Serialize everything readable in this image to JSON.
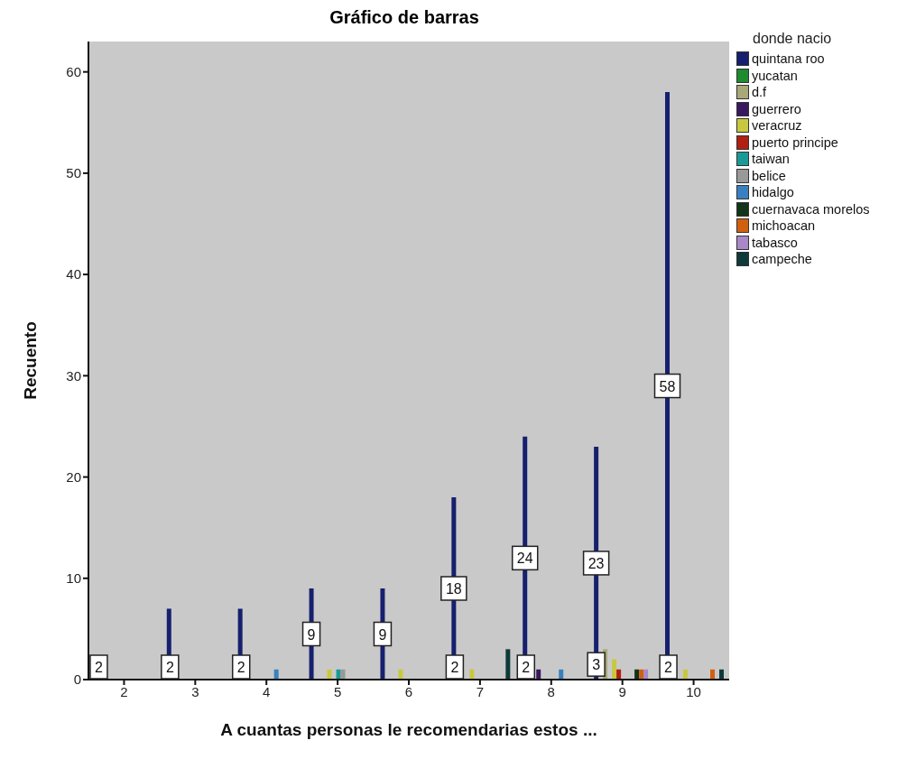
{
  "chart_data": {
    "type": "bar",
    "title": "Gráfico de barras",
    "xlabel": "A cuantas personas le recomendarias estos ...",
    "ylabel": "Recuento",
    "legend_title": "donde nacio",
    "categories": [
      "2",
      "3",
      "4",
      "5",
      "6",
      "7",
      "8",
      "9",
      "10"
    ],
    "ylim": [
      0,
      63
    ],
    "yticks": [
      0,
      10,
      20,
      30,
      40,
      50,
      60
    ],
    "grid": false,
    "legend": "right",
    "series": [
      {
        "name": "quintana roo",
        "color": "#16206e",
        "values": [
          0,
          7,
          7,
          9,
          9,
          18,
          24,
          23,
          58
        ],
        "value_labels": [
          null,
          null,
          null,
          "9",
          "9",
          "18",
          "24",
          "23",
          "58"
        ]
      },
      {
        "name": "yucatan",
        "color": "#1f8a2e",
        "values": [
          0,
          0,
          0,
          0,
          0,
          0,
          0,
          0,
          0
        ]
      },
      {
        "name": "d.f",
        "color": "#a8a878",
        "values": [
          0,
          0,
          0,
          0,
          0,
          0,
          0,
          3,
          0
        ],
        "value_labels": [
          null,
          null,
          null,
          null,
          null,
          null,
          null,
          "3",
          null
        ]
      },
      {
        "name": "guerrero",
        "color": "#3a1860",
        "values": [
          0,
          0,
          0,
          0,
          0,
          0,
          1,
          0,
          0
        ]
      },
      {
        "name": "veracruz",
        "color": "#c8c840",
        "values": [
          0,
          0,
          0,
          1,
          1,
          1,
          0,
          2,
          1
        ]
      },
      {
        "name": "puerto principe",
        "color": "#b02010",
        "values": [
          0,
          0,
          0,
          0,
          0,
          0,
          0,
          1,
          0
        ]
      },
      {
        "name": "taiwan",
        "color": "#1a9a96",
        "values": [
          0,
          0,
          0,
          1,
          0,
          0,
          0,
          0,
          0
        ]
      },
      {
        "name": "belice",
        "color": "#999999",
        "values": [
          0,
          0,
          0,
          1,
          0,
          0,
          0,
          0,
          0
        ]
      },
      {
        "name": "hidalgo",
        "color": "#3a80c0",
        "values": [
          0,
          0,
          1,
          0,
          0,
          0,
          1,
          0,
          0
        ]
      },
      {
        "name": "cuernavaca morelos",
        "color": "#123418",
        "values": [
          0,
          0,
          0,
          0,
          0,
          0,
          0,
          1,
          0
        ]
      },
      {
        "name": "michoacan",
        "color": "#d06010",
        "values": [
          0,
          0,
          0,
          0,
          0,
          0,
          0,
          1,
          1
        ]
      },
      {
        "name": "tabasco",
        "color": "#a888c8",
        "values": [
          0,
          0,
          0,
          0,
          0,
          0,
          0,
          1,
          0
        ]
      },
      {
        "name": "campeche",
        "color": "#0e3a3a",
        "values": [
          0,
          0,
          0,
          0,
          0,
          3,
          0,
          0,
          1
        ]
      }
    ],
    "annotations": [
      "2",
      "2",
      "2",
      "2",
      "2",
      "2"
    ]
  }
}
